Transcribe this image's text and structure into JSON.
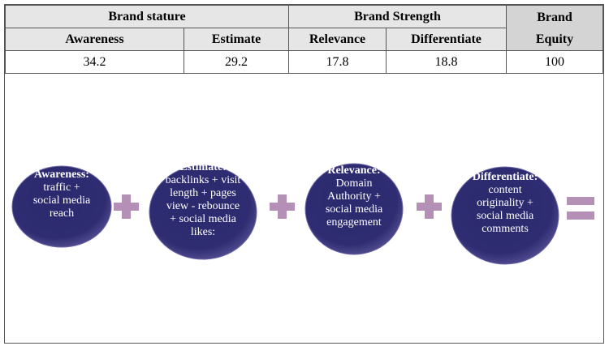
{
  "table": {
    "groups": [
      "Brand stature",
      "Brand Strength",
      "Brand Equity"
    ],
    "headers": [
      "Awareness",
      "Estimate",
      "Relevance",
      "Differentiate"
    ],
    "values": [
      34.2,
      29.2,
      17.8,
      18.8,
      100
    ]
  },
  "circles": [
    {
      "title": "Awareness:",
      "lines": [
        "traffic +",
        "social media",
        "reach"
      ]
    },
    {
      "title": "Estimate:",
      "lines": [
        "backlinks + visit",
        "length + pages",
        "view - rebounce",
        "+ social media",
        "likes:"
      ]
    },
    {
      "title": "Relevance:",
      "lines": [
        "Domain",
        "Authority +",
        "social media",
        "engagement"
      ]
    },
    {
      "title": "Differentiate:",
      "lines": [
        "content",
        "originality +",
        "social media",
        "comments"
      ]
    }
  ]
}
